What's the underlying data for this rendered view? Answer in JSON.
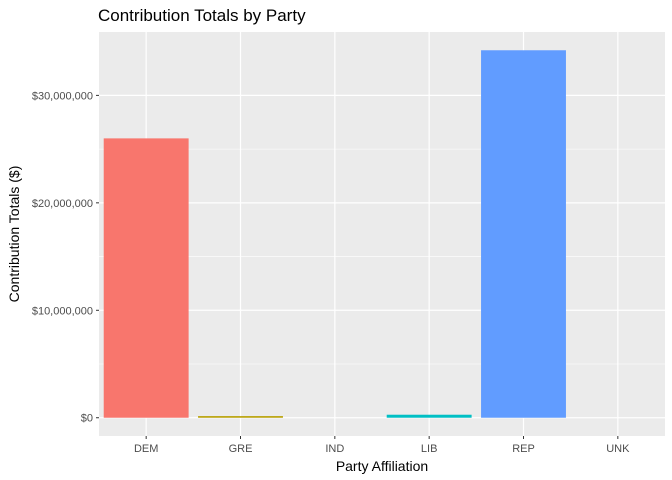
{
  "chart_data": {
    "type": "bar",
    "title": "Contribution Totals by Party",
    "xlabel": "Party Affiliation",
    "ylabel": "Contribution Totals ($)",
    "categories": [
      "DEM",
      "GRE",
      "IND",
      "LIB",
      "REP",
      "UNK"
    ],
    "values": [
      26000000,
      150000,
      0,
      280000,
      34200000,
      0
    ],
    "colors": [
      "#F8766D",
      "#B79F00",
      "#00BA38",
      "#00BFC4",
      "#619CFF",
      "#F564E3"
    ],
    "ylim": [
      -1700000,
      35900000
    ],
    "y_ticks": [
      0,
      10000000,
      20000000,
      30000000
    ],
    "y_tick_labels": [
      "$0",
      "$10,000,000",
      "$20,000,000",
      "$30,000,000"
    ],
    "grid": true,
    "legend": "none",
    "panel_background": "#EBEBEB",
    "grid_color": "#FFFFFF"
  }
}
